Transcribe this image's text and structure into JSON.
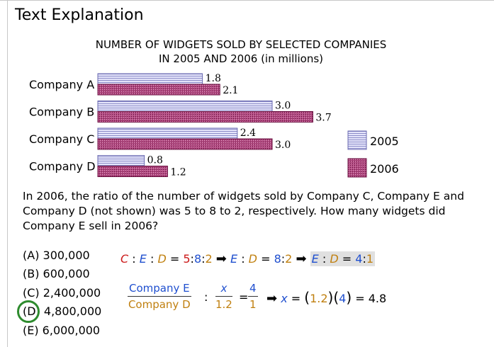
{
  "page": {
    "title": "Text Explanation"
  },
  "chart_title": [
    "NUMBER OF WIDGETS SOLD BY SELECTED COMPANIES",
    "IN 2005 AND 2006 (in millions)"
  ],
  "chart_data": {
    "type": "bar",
    "orientation": "horizontal",
    "title": "NUMBER OF WIDGETS SOLD BY SELECTED COMPANIES IN 2005 AND 2006 (in millions)",
    "categories": [
      "Company A",
      "Company B",
      "Company C",
      "Company D"
    ],
    "series": [
      {
        "name": "2005",
        "values": [
          1.8,
          3.0,
          2.4,
          0.8
        ],
        "value_labels": [
          "1.8",
          "3.0",
          "2.4",
          "0.8"
        ],
        "color": "#d6d6f5",
        "pattern": "horizontal-stripes"
      },
      {
        "name": "2006",
        "values": [
          2.1,
          3.7,
          3.0,
          1.2
        ],
        "value_labels": [
          "2.1",
          "3.7",
          "3.0",
          "1.2"
        ],
        "color": "#b03070",
        "pattern": "dots"
      }
    ],
    "legend_position": "right",
    "grid": false
  },
  "question": "In 2006, the ratio of the number of widgets sold by Company C, Company E and Company D (not shown) was 5 to 8 to 2, respectively. How many widgets did Company E sell in 2006?",
  "choices": [
    "(A) 300,000",
    "(B) 600,000",
    "(C) 2,400,000",
    "(D) 4,800,000",
    "(E) 6,000,000"
  ],
  "selected_choice": "(D) 4,800,000",
  "explanation": {
    "ratio1": {
      "C": "C",
      "E": "E",
      "D": "D",
      "sep": ":",
      "eq": "=",
      "v1": "5",
      "v2": "8",
      "v3": "2"
    },
    "ratio2": {
      "E": "E",
      "D": "D",
      "sep": ":",
      "eq": "=",
      "v1": "8",
      "v2": "2"
    },
    "ratio3": {
      "E": "E",
      "D": "D",
      "sep": ":",
      "eq": "=",
      "v1": "4",
      "v2": "1"
    },
    "arrow": "➡",
    "frac1": {
      "num": "Company E",
      "den": "Company D"
    },
    "colon": ":",
    "frac2": {
      "num": "x",
      "den": "1.2"
    },
    "eq": "=",
    "frac3": {
      "num": "4",
      "den": "1"
    },
    "final": {
      "x": "x",
      "eq": "=",
      "a": "1.2",
      "b": "4",
      "result": "4.8"
    }
  },
  "colors": {
    "red": "#cc1a1a",
    "blue": "#1f4fcf",
    "gold": "#c08010",
    "circle": "#2e8b2e"
  }
}
